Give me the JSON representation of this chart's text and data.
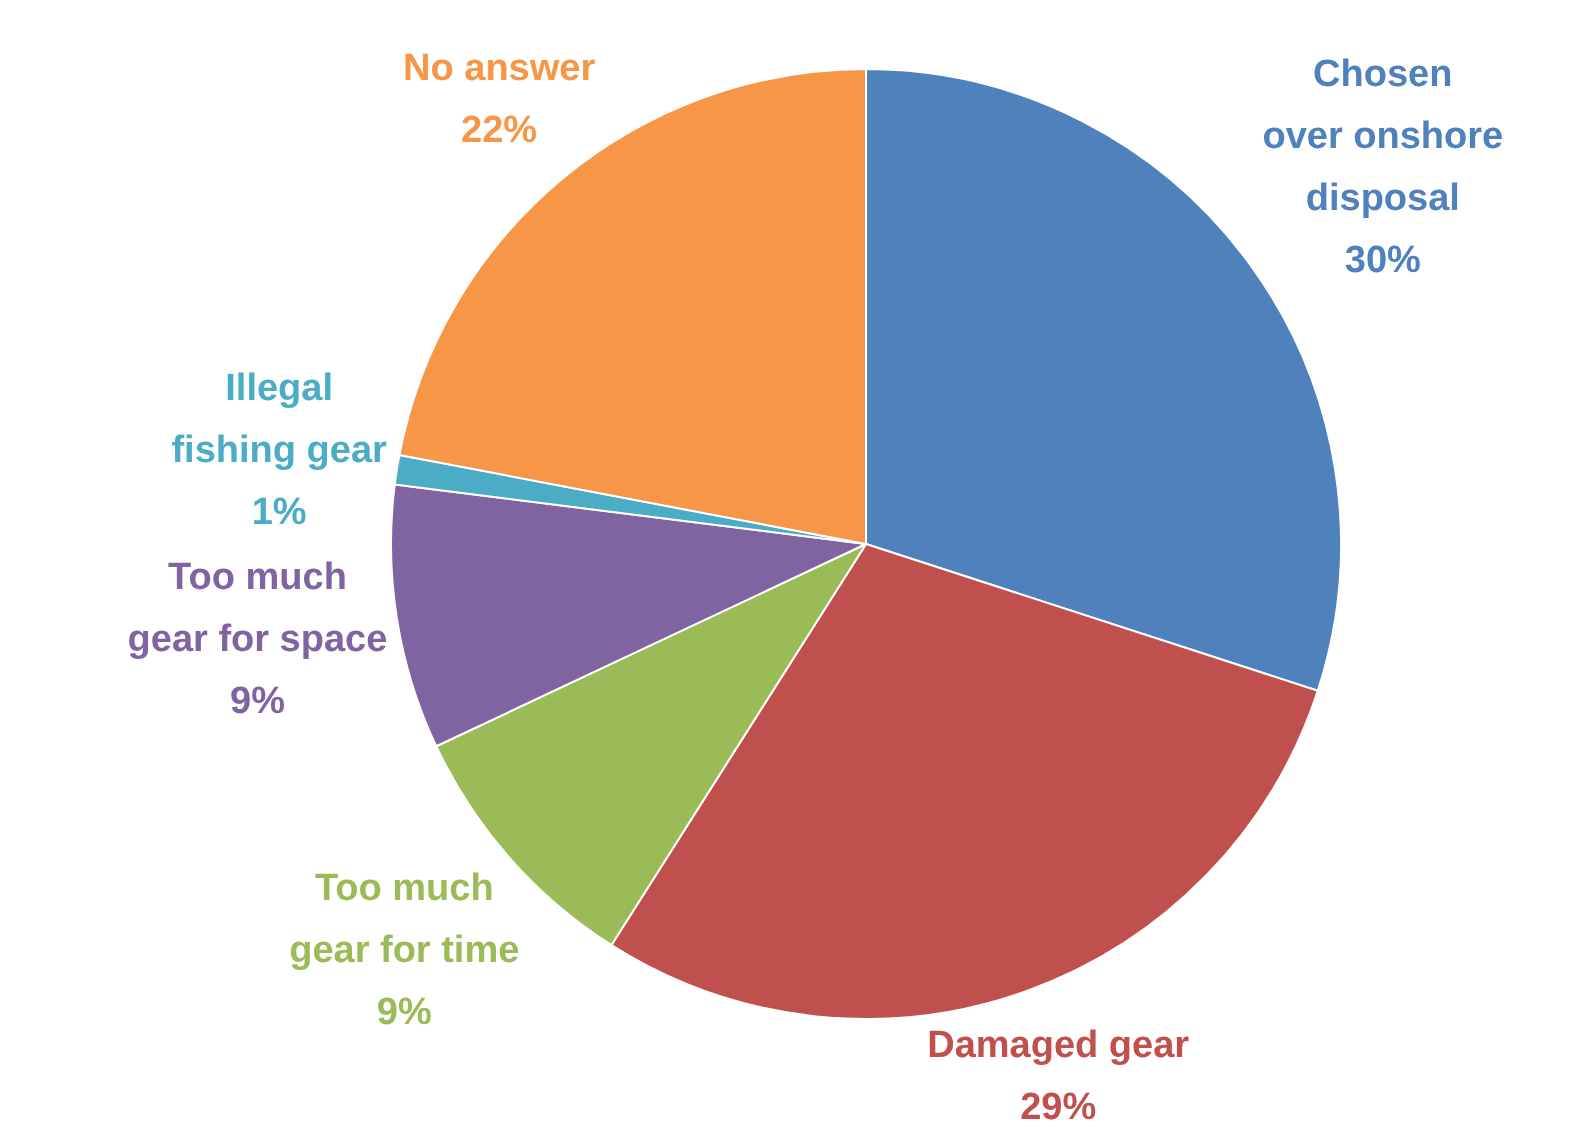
{
  "chart_data": {
    "type": "pie",
    "categories": [
      "Chosen over onshore disposal",
      "Damaged gear",
      "Too much gear for time",
      "Too much gear for space",
      "Illegal fishing gear",
      "No answer"
    ],
    "values": [
      30,
      29,
      9,
      9,
      1,
      22
    ],
    "value_labels": [
      "30%",
      "29%",
      "9%",
      "9%",
      "1%",
      "22%"
    ],
    "colors": [
      "#4f81bd",
      "#c0504d",
      "#9bbb59",
      "#8064a2",
      "#4bacc6",
      "#f79646"
    ],
    "legend": false
  }
}
